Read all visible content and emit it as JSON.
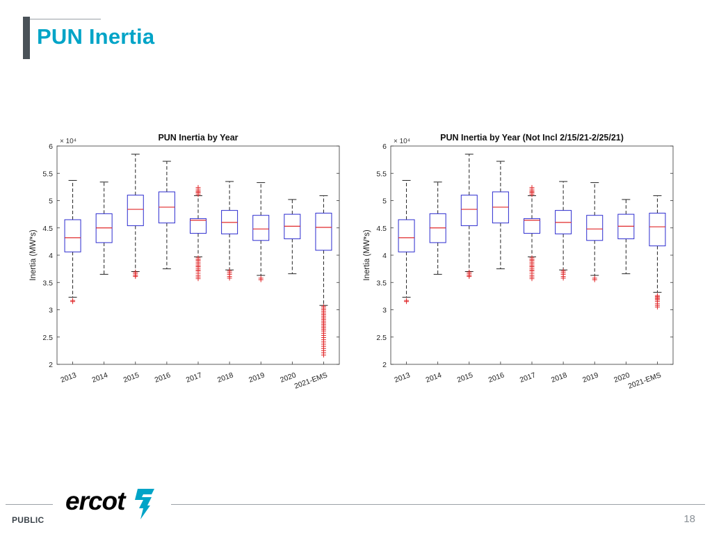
{
  "page": {
    "title": "PUN Inertia",
    "public_label": "PUBLIC",
    "page_number": "18",
    "logo_text": "ercot",
    "logo_icon": "texas-lightning-icon",
    "colors": {
      "title": "#00a4c7",
      "box": "#2b2bcf",
      "median": "#e0282a",
      "outlier": "#e0282a",
      "logo": "#14394f",
      "logo_icon": "#00a4c7"
    }
  },
  "chart_data": [
    {
      "type": "boxplot",
      "title": "PUN Inertia by Year",
      "ylabel": "Inertia (MW*s)",
      "exponent_label": "× 10⁴",
      "ylim": [
        2,
        6
      ],
      "yticks": [
        "2",
        "2.5",
        "3",
        "3.5",
        "4",
        "4.5",
        "5",
        "5.5",
        "6"
      ],
      "categories": [
        "2013",
        "2014",
        "2015",
        "2016",
        "2017",
        "2018",
        "2019",
        "2020",
        "2021-EMS"
      ],
      "boxes": [
        {
          "whisker_low": 3.23,
          "q1": 4.06,
          "median": 4.32,
          "q3": 4.65,
          "whisker_high": 5.37,
          "outliers": [
            3.17,
            3.15
          ]
        },
        {
          "whisker_low": 3.65,
          "q1": 4.23,
          "median": 4.5,
          "q3": 4.76,
          "whisker_high": 5.34,
          "outliers": []
        },
        {
          "whisker_low": 3.7,
          "q1": 4.54,
          "median": 4.84,
          "q3": 5.1,
          "whisker_high": 5.85,
          "outliers": [
            3.69,
            3.66,
            3.63,
            3.61
          ]
        },
        {
          "whisker_low": 3.75,
          "q1": 4.59,
          "median": 4.88,
          "q3": 5.16,
          "whisker_high": 5.72,
          "outliers": []
        },
        {
          "whisker_low": 3.97,
          "q1": 4.4,
          "median": 4.64,
          "q3": 4.67,
          "whisker_high": 5.09,
          "outliers": [
            5.11,
            5.14,
            5.16,
            5.18,
            5.21,
            5.24,
            3.95,
            3.92,
            3.9,
            3.87,
            3.84,
            3.81,
            3.79,
            3.76,
            3.73,
            3.71,
            3.67,
            3.63,
            3.6,
            3.57
          ]
        },
        {
          "whisker_low": 3.73,
          "q1": 4.39,
          "median": 4.6,
          "q3": 4.82,
          "whisker_high": 5.35,
          "outliers": [
            3.71,
            3.68,
            3.65,
            3.61,
            3.58
          ]
        },
        {
          "whisker_low": 3.63,
          "q1": 4.27,
          "median": 4.48,
          "q3": 4.73,
          "whisker_high": 5.33,
          "outliers": [
            3.58,
            3.55
          ]
        },
        {
          "whisker_low": 3.66,
          "q1": 4.3,
          "median": 4.53,
          "q3": 4.75,
          "whisker_high": 5.02,
          "outliers": []
        },
        {
          "whisker_low": 3.08,
          "q1": 4.09,
          "median": 4.51,
          "q3": 4.77,
          "whisker_high": 5.09,
          "outliers": [
            3.06,
            3.03,
            3.0,
            2.97,
            2.94,
            2.91,
            2.88,
            2.85,
            2.82,
            2.79,
            2.76,
            2.73,
            2.7,
            2.67,
            2.64,
            2.61,
            2.57,
            2.53,
            2.49,
            2.45,
            2.41,
            2.37,
            2.33,
            2.29,
            2.25,
            2.21,
            2.17
          ]
        }
      ]
    },
    {
      "type": "boxplot",
      "title": "PUN Inertia by Year (Not Incl 2/15/21-2/25/21)",
      "ylabel": "Inertia (MW*s)",
      "exponent_label": "× 10⁴",
      "ylim": [
        2,
        6
      ],
      "yticks": [
        "2",
        "2.5",
        "3",
        "3.5",
        "4",
        "4.5",
        "5",
        "5.5",
        "6"
      ],
      "categories": [
        "2013",
        "2014",
        "2015",
        "2016",
        "2017",
        "2018",
        "2019",
        "2020",
        "2021-EMS"
      ],
      "boxes": [
        {
          "whisker_low": 3.23,
          "q1": 4.06,
          "median": 4.32,
          "q3": 4.65,
          "whisker_high": 5.37,
          "outliers": [
            3.17,
            3.15
          ]
        },
        {
          "whisker_low": 3.65,
          "q1": 4.23,
          "median": 4.5,
          "q3": 4.76,
          "whisker_high": 5.34,
          "outliers": []
        },
        {
          "whisker_low": 3.7,
          "q1": 4.54,
          "median": 4.84,
          "q3": 5.1,
          "whisker_high": 5.85,
          "outliers": [
            3.69,
            3.66,
            3.63,
            3.61
          ]
        },
        {
          "whisker_low": 3.75,
          "q1": 4.59,
          "median": 4.88,
          "q3": 5.16,
          "whisker_high": 5.72,
          "outliers": []
        },
        {
          "whisker_low": 3.97,
          "q1": 4.4,
          "median": 4.64,
          "q3": 4.67,
          "whisker_high": 5.09,
          "outliers": [
            5.11,
            5.14,
            5.16,
            5.18,
            5.21,
            5.24,
            3.95,
            3.92,
            3.9,
            3.87,
            3.84,
            3.81,
            3.79,
            3.76,
            3.73,
            3.71,
            3.67,
            3.63,
            3.6,
            3.57
          ]
        },
        {
          "whisker_low": 3.73,
          "q1": 4.39,
          "median": 4.6,
          "q3": 4.82,
          "whisker_high": 5.35,
          "outliers": [
            3.71,
            3.68,
            3.65,
            3.61,
            3.58
          ]
        },
        {
          "whisker_low": 3.63,
          "q1": 4.27,
          "median": 4.48,
          "q3": 4.73,
          "whisker_high": 5.33,
          "outliers": [
            3.58,
            3.55
          ]
        },
        {
          "whisker_low": 3.66,
          "q1": 4.3,
          "median": 4.53,
          "q3": 4.75,
          "whisker_high": 5.02,
          "outliers": []
        },
        {
          "whisker_low": 3.32,
          "q1": 4.17,
          "median": 4.52,
          "q3": 4.77,
          "whisker_high": 5.09,
          "outliers": [
            3.26,
            3.24,
            3.22,
            3.2,
            3.18,
            3.15,
            3.11,
            3.08,
            3.05
          ]
        }
      ]
    }
  ]
}
